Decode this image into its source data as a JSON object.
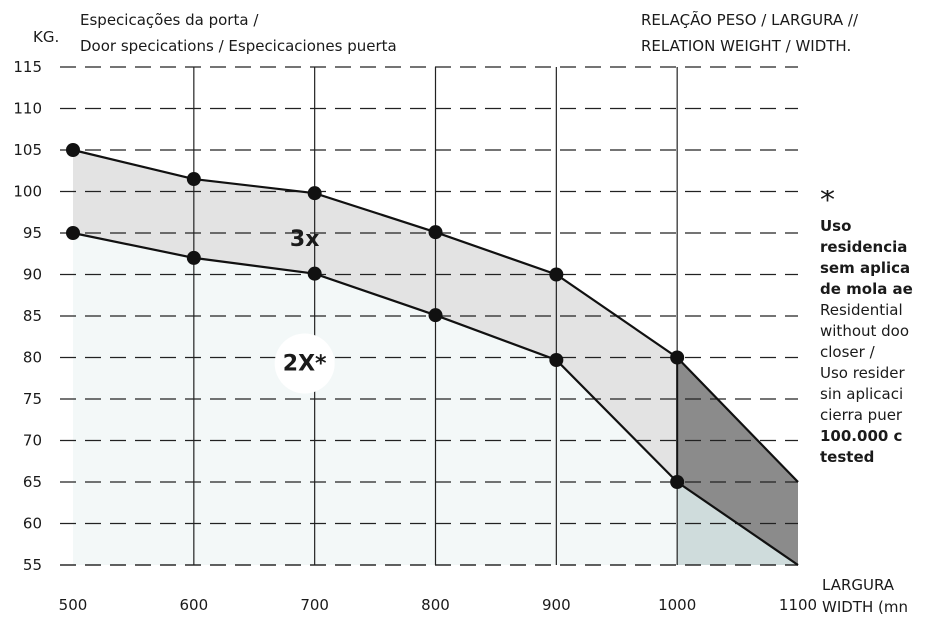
{
  "header": {
    "kg": "KG.",
    "specs_line1": "Especicações da porta /",
    "specs_line2": "Door specications / Especicaciones puerta",
    "relation_line1": "RELAÇÃO PESO / LARGURA //",
    "relation_line2": "RELATION WEIGHT / WIDTH."
  },
  "note": {
    "star": "*",
    "bold_lines": [
      "Uso",
      "residencia",
      "sem aplica",
      "de mola ae"
    ],
    "normal_lines": [
      "Residential",
      "without doo",
      "closer /",
      "Uso resider",
      "sin aplicaci",
      "cierra puer"
    ],
    "bold_lines2": [
      "100.000 c",
      "tested"
    ]
  },
  "x_unit": {
    "line1": "LARGURA",
    "line2": "WIDTH (mn"
  },
  "colors": {
    "band": "#e3e3e3",
    "light_fill": "#f3f8f8",
    "dark_band": "#8b8b8b",
    "extended_light": "#cfdcdc",
    "line": "#111111"
  },
  "chart_data": {
    "type": "area",
    "xlim": [
      500,
      1100
    ],
    "ylim": [
      55,
      115
    ],
    "x_ticks": [
      "500",
      "600",
      "700",
      "800",
      "900",
      "1000",
      "1100"
    ],
    "y_ticks": [
      "55",
      "60",
      "65",
      "70",
      "75",
      "80",
      "85",
      "90",
      "95",
      "100",
      "105",
      "110",
      "115"
    ],
    "grid": true,
    "series": [
      {
        "x": [
          500,
          600,
          700,
          800,
          900,
          1000
        ],
        "values": [
          105,
          101.5,
          99.8,
          95.1,
          90,
          80
        ]
      },
      {
        "x": [
          500,
          600,
          700,
          800,
          900,
          1000
        ],
        "values": [
          95,
          92,
          90.1,
          85.1,
          79.7,
          65
        ]
      }
    ],
    "extension": {
      "upper": {
        "x": [
          1000,
          1100
        ],
        "values": [
          80,
          65
        ]
      },
      "lower": {
        "x": [
          1000,
          1100
        ],
        "values": [
          65,
          55
        ]
      }
    },
    "annotations": [
      {
        "text": "3x",
        "x": 700,
        "y": 95
      },
      {
        "text": "2X*",
        "x": 700,
        "y": 80
      }
    ]
  }
}
